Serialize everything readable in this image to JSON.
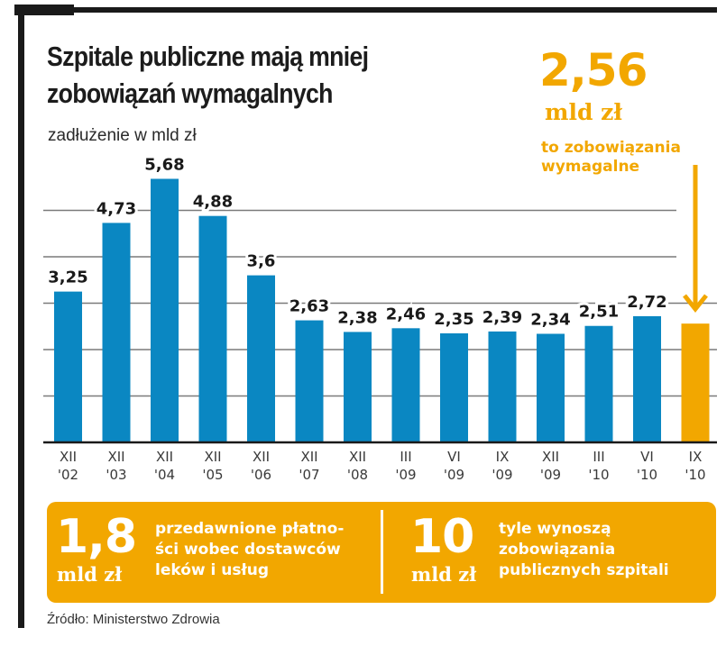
{
  "header": {
    "title_line1": "Szpitale publiczne mają mniej",
    "title_line2": "zobowiązań wymagalnych",
    "subtitle": "zadłużenie w mld zł"
  },
  "callout": {
    "value": "2,56",
    "unit": "mld zł",
    "text_line1": "to zobowiązania",
    "text_line2": "wymagalne"
  },
  "colors": {
    "bar": "#0a87c2",
    "highlight": "#f2a700",
    "grid": "#7a7a7a",
    "axis": "#1a1a1a"
  },
  "chart_data": {
    "type": "bar",
    "title": "Szpitale publiczne mają mniej zobowiązań wymagalnych",
    "ylabel": "zadłużenie w mld zł",
    "xlabel": "",
    "categories": [
      "XII '02",
      "XII '03",
      "XII '04",
      "XII '05",
      "XII '06",
      "XII '07",
      "XII '08",
      "III '09",
      "VI '09",
      "IX '09",
      "XII '09",
      "III '10",
      "VI '10",
      "IX '10"
    ],
    "category_lines": [
      [
        "XII",
        "'02"
      ],
      [
        "XII",
        "'03"
      ],
      [
        "XII",
        "'04"
      ],
      [
        "XII",
        "'05"
      ],
      [
        "XII",
        "'06"
      ],
      [
        "XII",
        "'07"
      ],
      [
        "XII",
        "'08"
      ],
      [
        "III",
        "'09"
      ],
      [
        "VI",
        "'09"
      ],
      [
        "IX",
        "'09"
      ],
      [
        "XII",
        "'09"
      ],
      [
        "III",
        "'10"
      ],
      [
        "VI",
        "'10"
      ],
      [
        "IX",
        "'10"
      ]
    ],
    "values": [
      3.25,
      4.73,
      5.68,
      4.88,
      3.6,
      2.63,
      2.38,
      2.46,
      2.35,
      2.39,
      2.34,
      2.51,
      2.72,
      2.56
    ],
    "labels": [
      "3,25",
      "4,73",
      "5,68",
      "4,88",
      "3,6",
      "2,63",
      "2,38",
      "2,46",
      "2,35",
      "2,39",
      "2,34",
      "2,51",
      "2,72",
      ""
    ],
    "highlight_index": 13,
    "ylim": [
      0,
      6
    ],
    "gridlines": [
      1,
      2,
      3,
      4,
      5
    ],
    "grid": true,
    "legend": "none",
    "annotation": "2,56 mld zł to zobowiązania wymagalne"
  },
  "stats": [
    {
      "value": "1,8",
      "unit": "mld zł",
      "lines": [
        "przedawnione płatno-",
        "ści wobec dostawców",
        "leków i usług"
      ]
    },
    {
      "value": "10",
      "unit": "mld zł",
      "lines": [
        "tyle wynoszą",
        "zobowiązania",
        "publicznych szpitali"
      ]
    }
  ],
  "source": "Źródło: Ministerstwo Zdrowia"
}
